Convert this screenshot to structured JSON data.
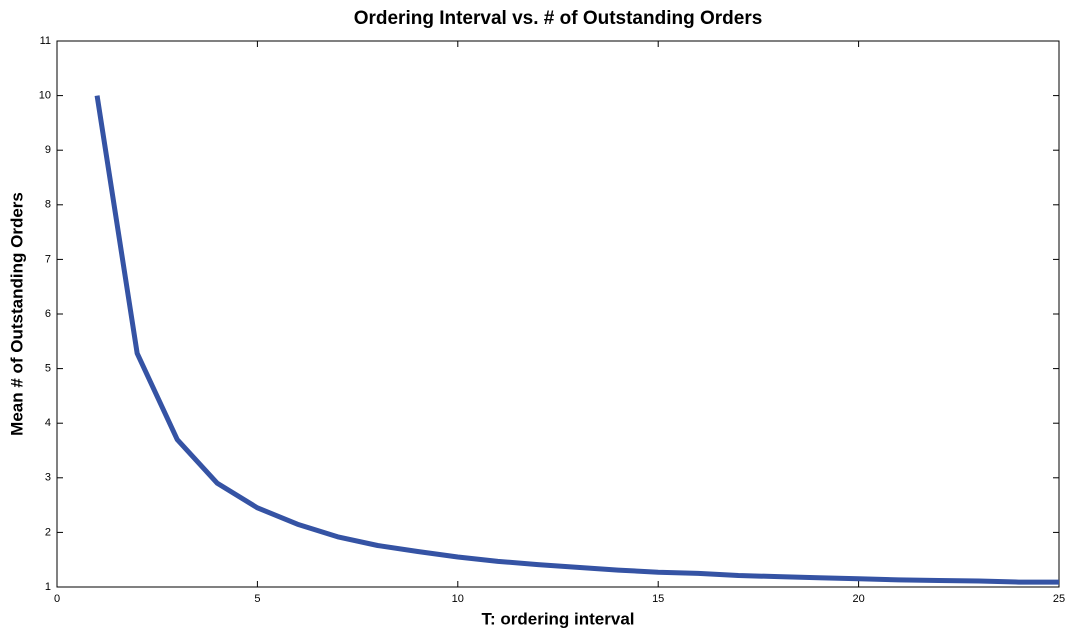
{
  "chart_data": {
    "type": "line",
    "title": "Ordering Interval vs. # of Outstanding Orders",
    "xlabel": "T: ordering interval",
    "ylabel": "Mean # of Outstanding Orders",
    "x": [
      1,
      2,
      3,
      4,
      5,
      6,
      7,
      8,
      9,
      10,
      11,
      12,
      13,
      14,
      15,
      16,
      17,
      18,
      19,
      20,
      21,
      22,
      23,
      24,
      25
    ],
    "series": [
      {
        "name": "Mean # of Outstanding Orders",
        "color": "#3553a4",
        "values": [
          10,
          5.28,
          3.7,
          2.9,
          2.45,
          2.15,
          1.92,
          1.76,
          1.65,
          1.55,
          1.47,
          1.41,
          1.36,
          1.31,
          1.27,
          1.25,
          1.21,
          1.19,
          1.17,
          1.15,
          1.13,
          1.12,
          1.11,
          1.09,
          1.09
        ]
      }
    ],
    "xlim": [
      0,
      25
    ],
    "xticks": [
      0,
      5,
      10,
      15,
      20,
      25
    ],
    "ylim": [
      1,
      11
    ],
    "yticks": [
      1,
      2,
      3,
      4,
      5,
      6,
      7,
      8,
      9,
      10,
      11
    ]
  }
}
